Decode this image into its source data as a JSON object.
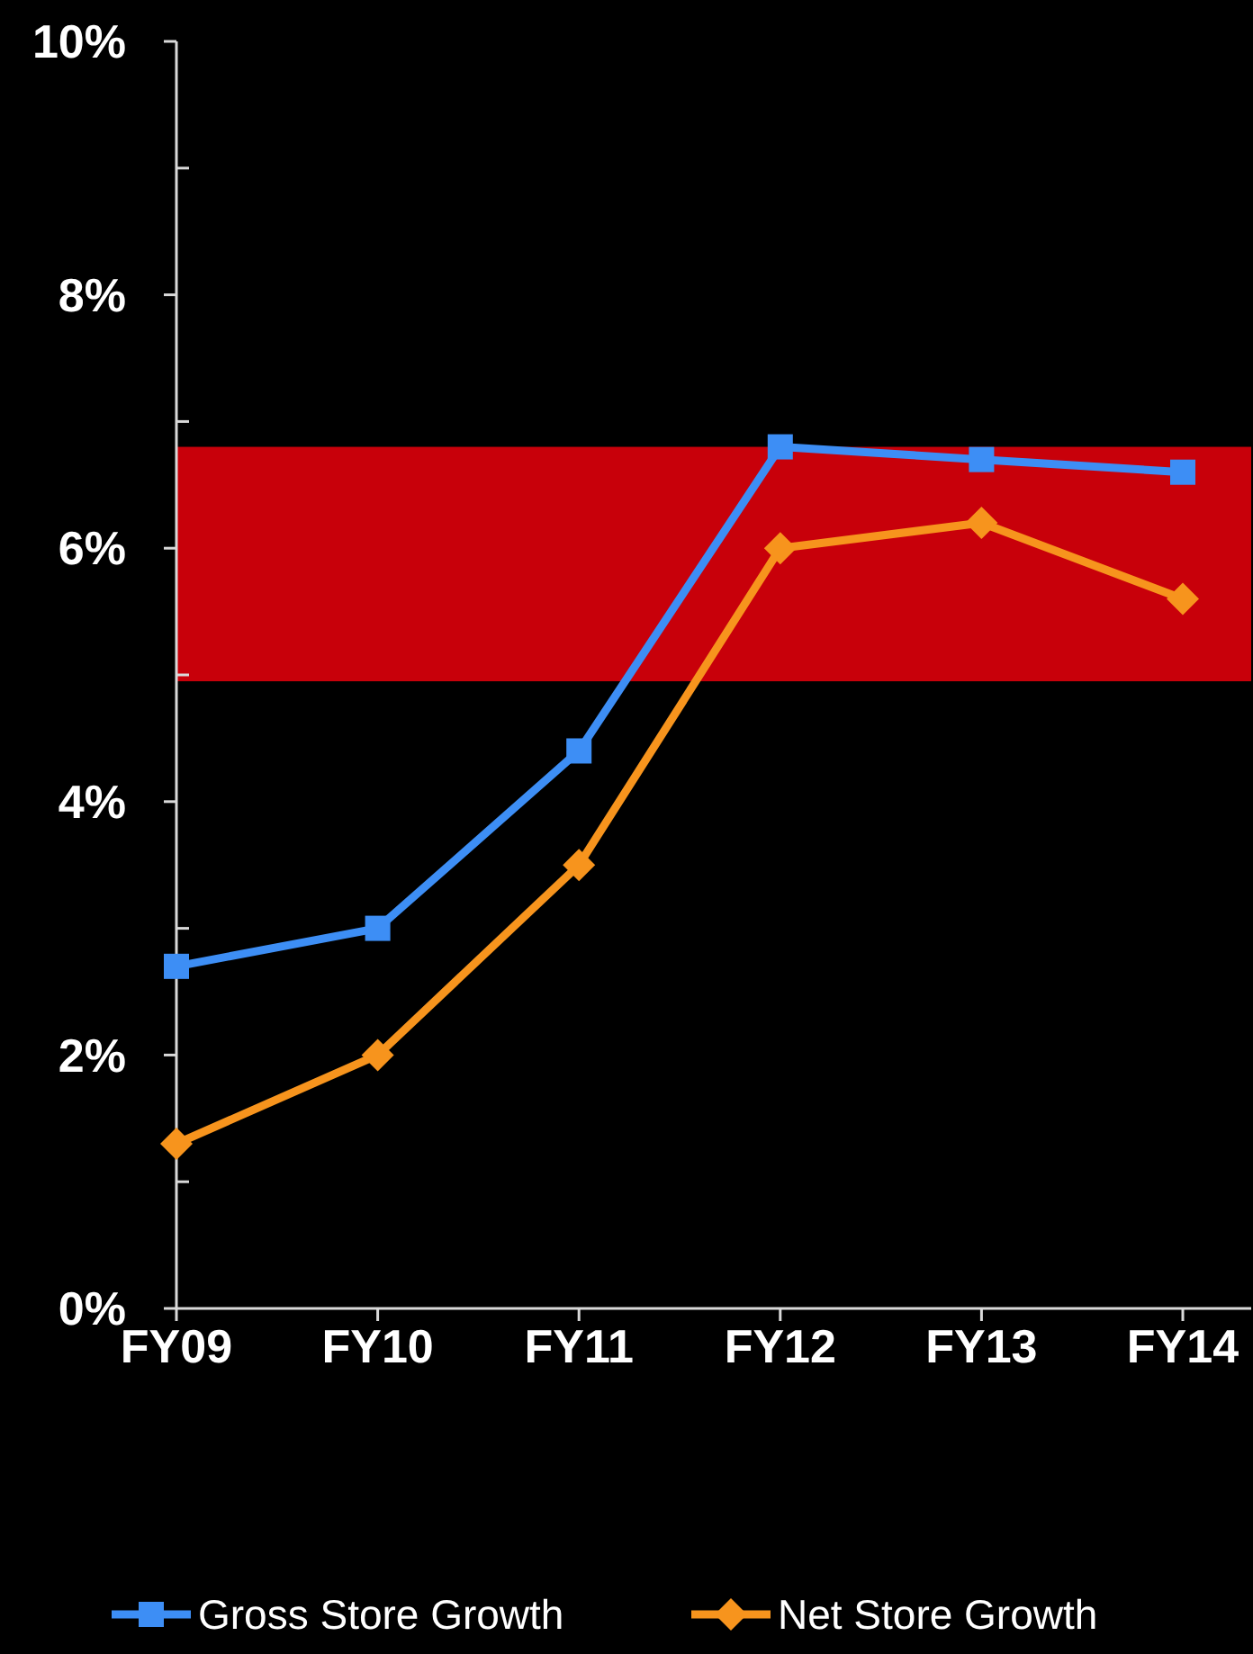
{
  "chart_data": {
    "type": "line",
    "categories": [
      "FY09",
      "FY10",
      "FY11",
      "FY12",
      "FY13",
      "FY14"
    ],
    "series": [
      {
        "name": "Gross Store Growth",
        "color": "#3d8ef5",
        "marker": "square",
        "values": [
          2.7,
          3.0,
          4.4,
          6.8,
          6.7,
          6.6
        ]
      },
      {
        "name": "Net Store Growth",
        "color": "#f7941d",
        "marker": "diamond",
        "values": [
          1.3,
          2.0,
          3.5,
          6.0,
          6.2,
          5.6
        ]
      }
    ],
    "ylim": [
      0,
      10
    ],
    "yticks": [
      {
        "value": 0,
        "label": "0%"
      },
      {
        "value": 1,
        "label": null
      },
      {
        "value": 2,
        "label": "2%"
      },
      {
        "value": 3,
        "label": null
      },
      {
        "value": 4,
        "label": "4%"
      },
      {
        "value": 5,
        "label": null
      },
      {
        "value": 6,
        "label": "6%"
      },
      {
        "value": 7,
        "label": null
      },
      {
        "value": 8,
        "label": "8%"
      },
      {
        "value": 9,
        "label": null
      },
      {
        "value": 10,
        "label": "10%"
      }
    ],
    "bands": [
      {
        "axis": "y",
        "from": 4.95,
        "to": 6.8,
        "color": "#c8000a"
      }
    ],
    "legend": "bottom",
    "grid": false,
    "line_style": "solid"
  }
}
